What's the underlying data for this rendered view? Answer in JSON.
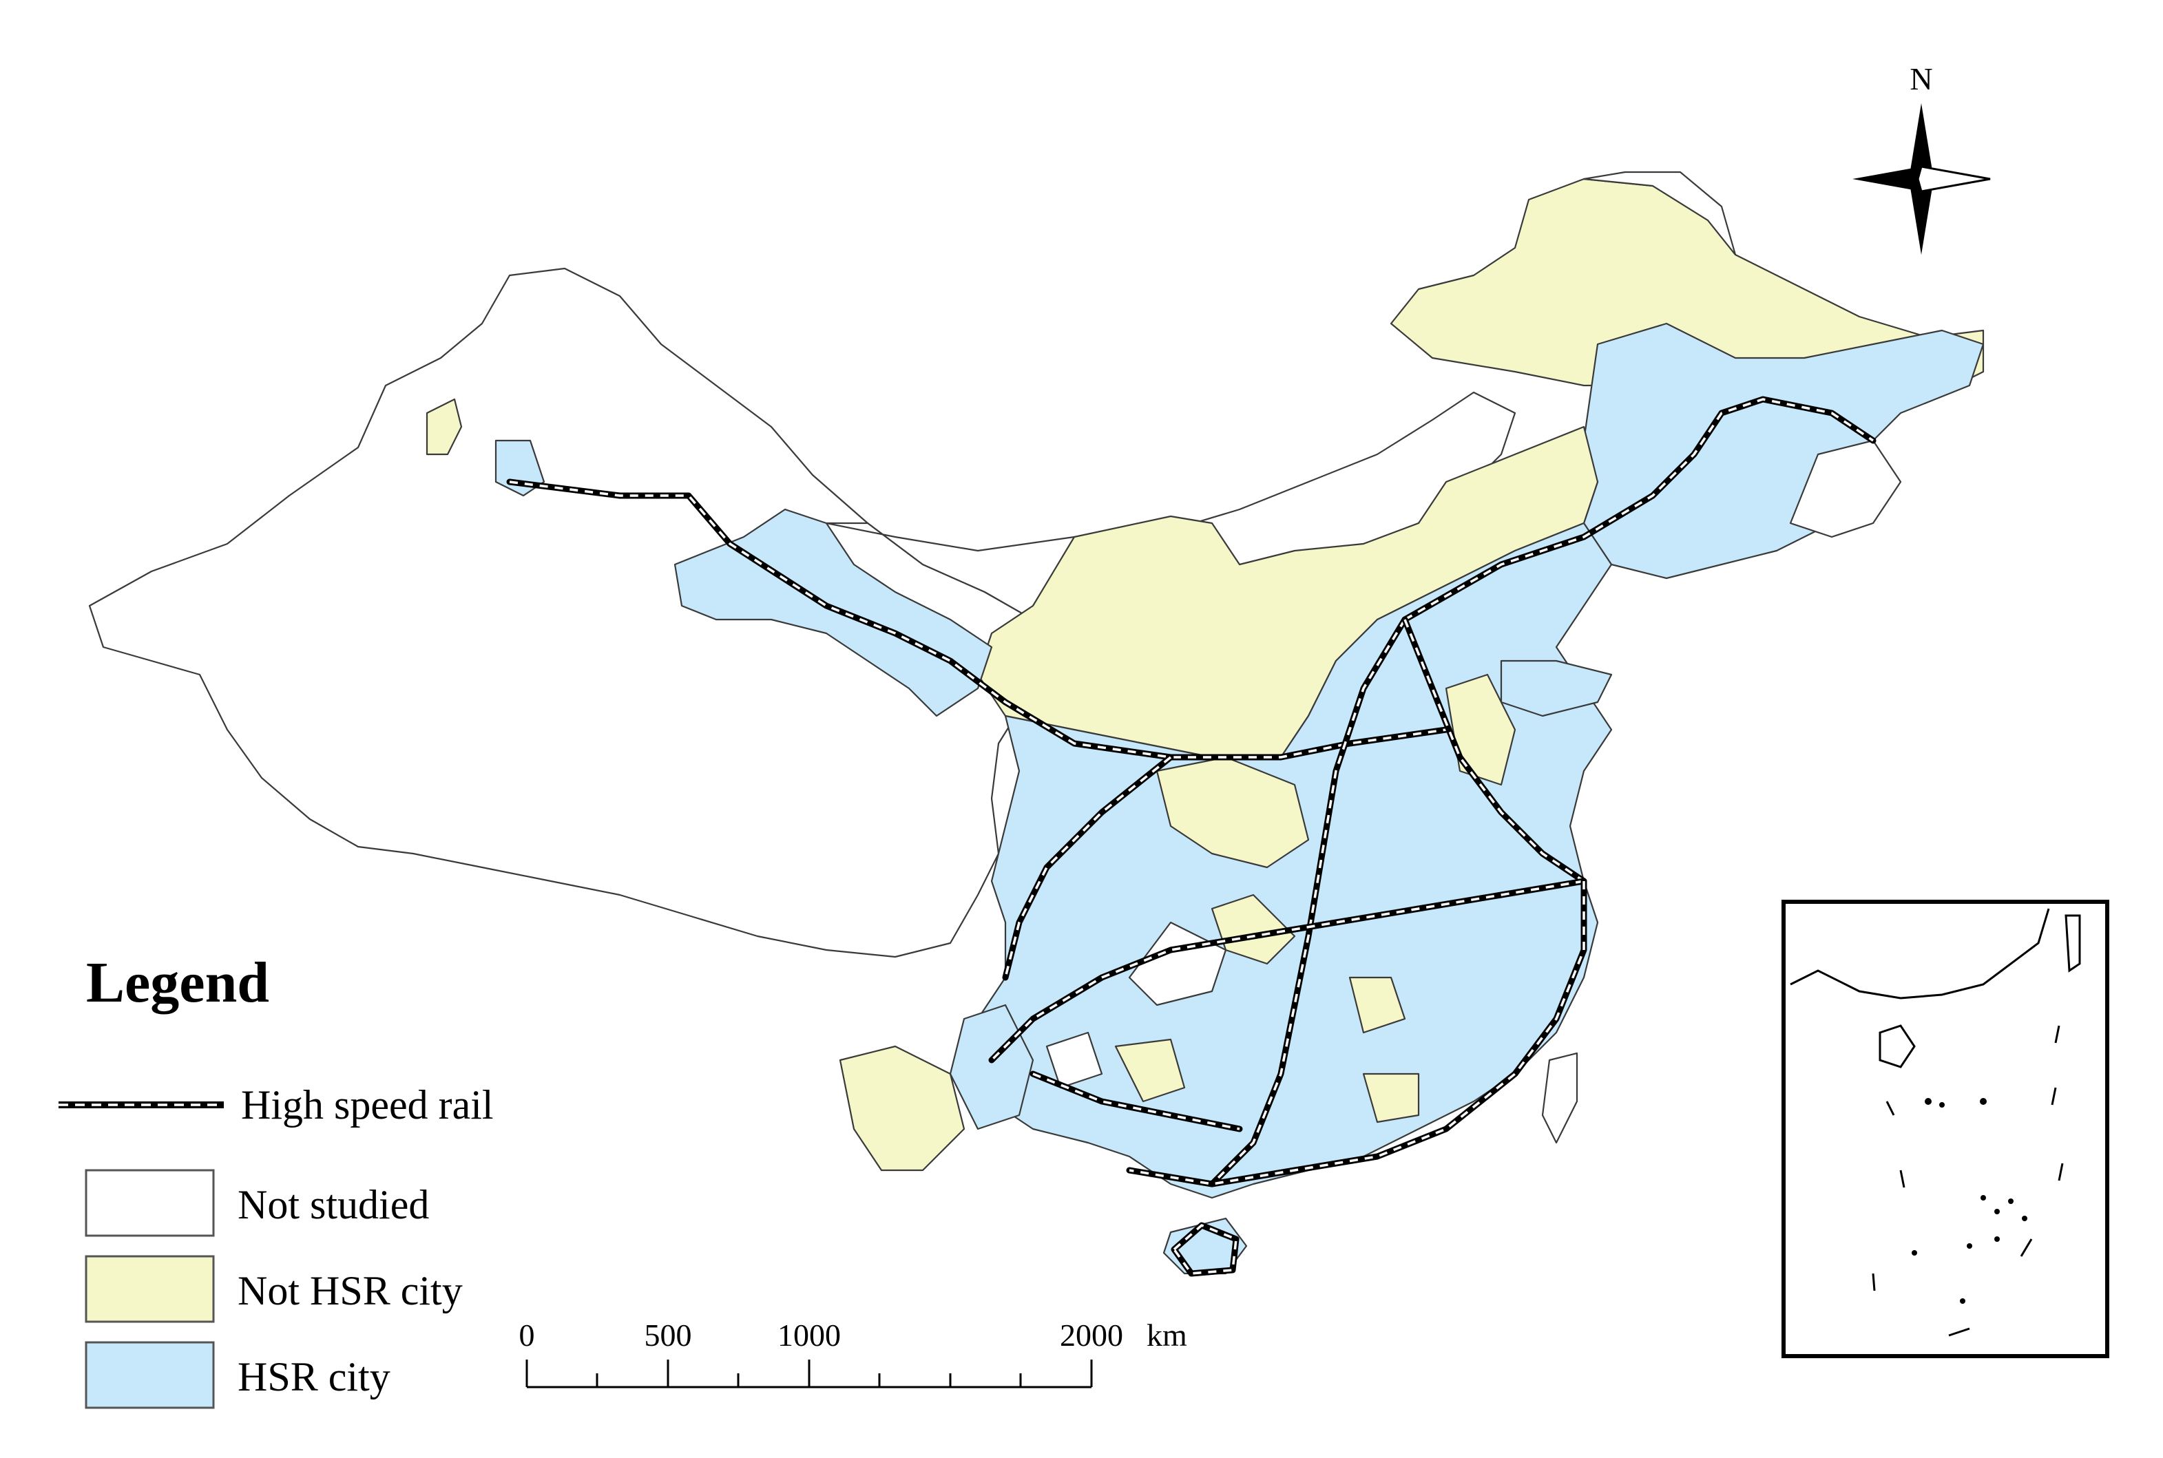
{
  "north_arrow": {
    "label": "N"
  },
  "legend": {
    "title": "Legend",
    "items": [
      {
        "key": "rail",
        "label": "High speed rail"
      },
      {
        "key": "not_studied",
        "label": "Not studied",
        "color": "#ffffff"
      },
      {
        "key": "not_hsr",
        "label": "Not HSR city",
        "color": "#f5f7c9"
      },
      {
        "key": "hsr",
        "label": "HSR city",
        "color": "#c6e8fa"
      }
    ]
  },
  "scale_bar": {
    "unit": "km",
    "ticks": [
      {
        "label": "0"
      },
      {
        "label": "500"
      },
      {
        "label": "1000"
      },
      {
        "label": "2000"
      }
    ]
  },
  "colors": {
    "hsr_city": "#c6e8fa",
    "not_hsr_city": "#f5f7c9",
    "not_studied": "#ffffff",
    "boundary": "#3a3a3a",
    "rail": "#000000"
  }
}
